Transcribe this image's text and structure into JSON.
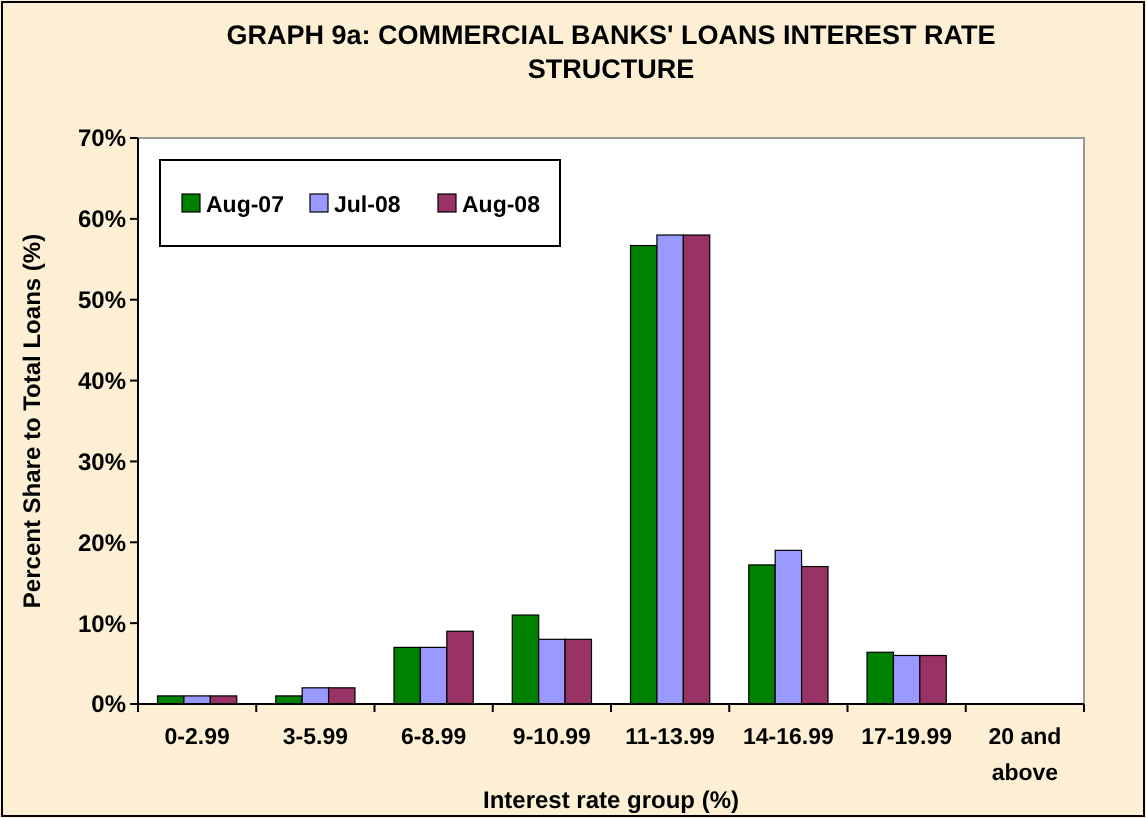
{
  "chart_data": {
    "type": "bar",
    "title": "GRAPH 9a:  COMMERCIAL BANKS' LOANS INTEREST RATE STRUCTURE",
    "xlabel": "Interest rate group (%)",
    "ylabel": "Percent Share to Total Loans (%)",
    "categories": [
      "0-2.99",
      "3-5.99",
      "6-8.99",
      "9-10.99",
      "11-13.99",
      "14-16.99",
      "17-19.99",
      "20 and above"
    ],
    "series": [
      {
        "name": "Aug-07",
        "color": "#008000",
        "values": [
          1,
          1,
          7,
          11,
          56.7,
          17.2,
          6.4,
          0
        ]
      },
      {
        "name": "Jul-08",
        "color": "#9999ff",
        "values": [
          1,
          2,
          7,
          8,
          58,
          19,
          6,
          0
        ]
      },
      {
        "name": "Aug-08",
        "color": "#993366",
        "values": [
          1,
          2,
          9,
          8,
          58,
          17,
          6,
          0
        ]
      }
    ],
    "ylim": [
      0,
      70
    ],
    "yticks": [
      {
        "value": 0,
        "label": "0%"
      },
      {
        "value": 10,
        "label": "10%"
      },
      {
        "value": 20,
        "label": "20%"
      },
      {
        "value": 30,
        "label": "30%"
      },
      {
        "value": 40,
        "label": "40%"
      },
      {
        "value": 50,
        "label": "50%"
      },
      {
        "value": 60,
        "label": "60%"
      },
      {
        "value": 70,
        "label": "70%"
      }
    ],
    "grid": false,
    "legend": "top left"
  }
}
